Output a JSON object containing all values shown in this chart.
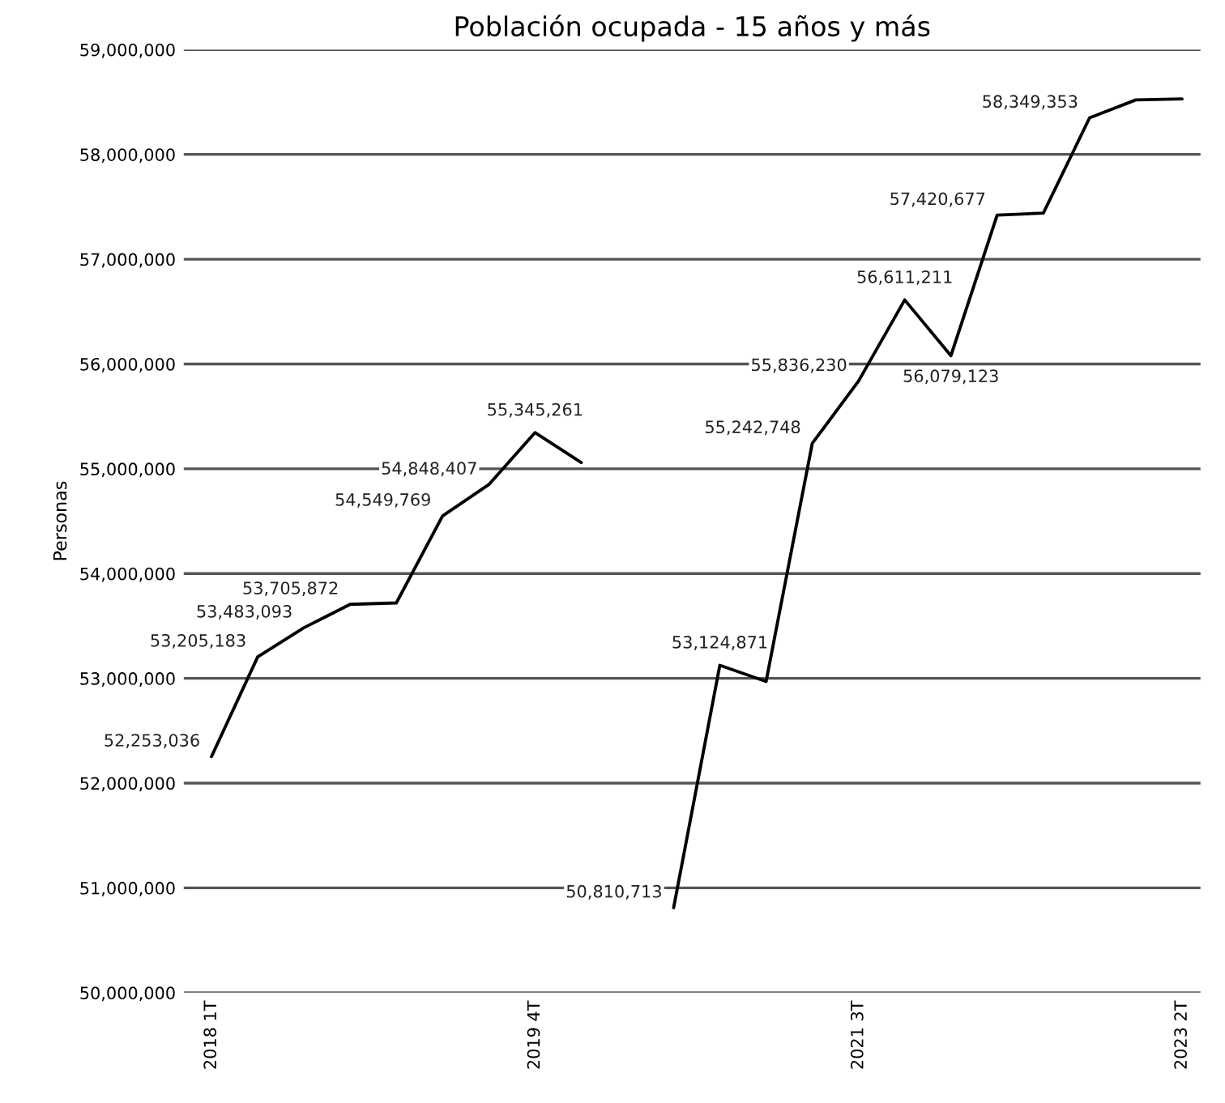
{
  "chart_data": {
    "type": "line",
    "title": "Población ocupada - 15 años y más",
    "ylabel": "Personas",
    "categories": [
      "2018 1T",
      null,
      null,
      null,
      null,
      null,
      null,
      "2019 4T",
      null,
      null,
      null,
      null,
      null,
      null,
      "2021 3T",
      null,
      null,
      null,
      null,
      null,
      null,
      "2023 2T"
    ],
    "series": [
      {
        "color": "#000000",
        "values": [
          52253036,
          53205183,
          53483093,
          53705872,
          53720000,
          54549769,
          54848407,
          55345261,
          55060000,
          null,
          50810713,
          53124871,
          52970000,
          55242748,
          55836230,
          56611211,
          56079123,
          57420677,
          57440000,
          58349353,
          58520000,
          58530000
        ],
        "value_labels": [
          "52,253,036",
          "53,205,183",
          "53,483,093",
          "53,705,872",
          null,
          "54,549,769",
          "54,848,407",
          "55,345,261",
          null,
          null,
          "50,810,713",
          "53,124,871",
          null,
          "55,242,748",
          "55,836,230",
          "56,611,211",
          "56,079,123",
          "57,420,677",
          null,
          "58,349,353",
          null,
          null
        ]
      }
    ],
    "ylim": [
      50000000,
      59000000
    ],
    "yticks": [
      {
        "value": 50000000,
        "label": "50,000,000"
      },
      {
        "value": 51000000,
        "label": "51,000,000"
      },
      {
        "value": 52000000,
        "label": "52,000,000"
      },
      {
        "value": 53000000,
        "label": "53,000,000"
      },
      {
        "value": 54000000,
        "label": "54,000,000"
      },
      {
        "value": 55000000,
        "label": "55,000,000"
      },
      {
        "value": 56000000,
        "label": "56,000,000"
      },
      {
        "value": 57000000,
        "label": "57,000,000"
      },
      {
        "value": 58000000,
        "label": "58,000,000"
      },
      {
        "value": 59000000,
        "label": "59,000,000"
      }
    ],
    "grid": "y",
    "marker": "none",
    "line_style": "solid",
    "legend": false
  }
}
